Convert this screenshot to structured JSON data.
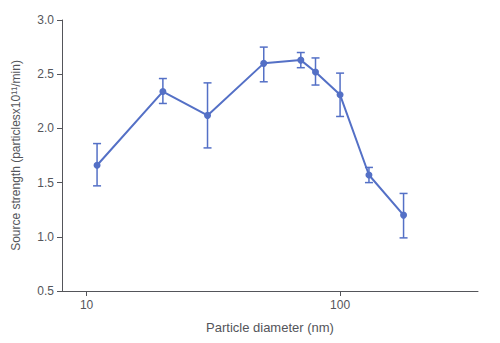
{
  "chart_data": {
    "type": "line",
    "x": [
      11,
      20,
      30,
      50,
      70,
      80,
      100,
      130,
      178
    ],
    "values": [
      1.66,
      2.34,
      2.12,
      2.6,
      2.63,
      2.52,
      2.31,
      1.57,
      1.2
    ],
    "error_low": [
      0.19,
      0.11,
      0.3,
      0.17,
      0.07,
      0.12,
      0.2,
      0.07,
      0.21
    ],
    "error_high": [
      0.2,
      0.12,
      0.3,
      0.15,
      0.07,
      0.13,
      0.2,
      0.07,
      0.2
    ],
    "xlabel": "Particle diameter (nm)",
    "ylabel": "Source strength (particlesx10¹¹/min)",
    "log": "x",
    "xlim": [
      8,
      350
    ],
    "ylim": [
      0.5,
      3.0
    ],
    "xticks": [
      10,
      100
    ],
    "yticks": [
      0.5,
      {
        "value": 1.0,
        "label": "1.0"
      },
      1.5,
      {
        "value": 2.0,
        "label": "2.0"
      },
      2.5,
      {
        "value": 3.0,
        "label": "3.0"
      }
    ],
    "marker": "circle",
    "line_style": "solid",
    "grid": false
  }
}
